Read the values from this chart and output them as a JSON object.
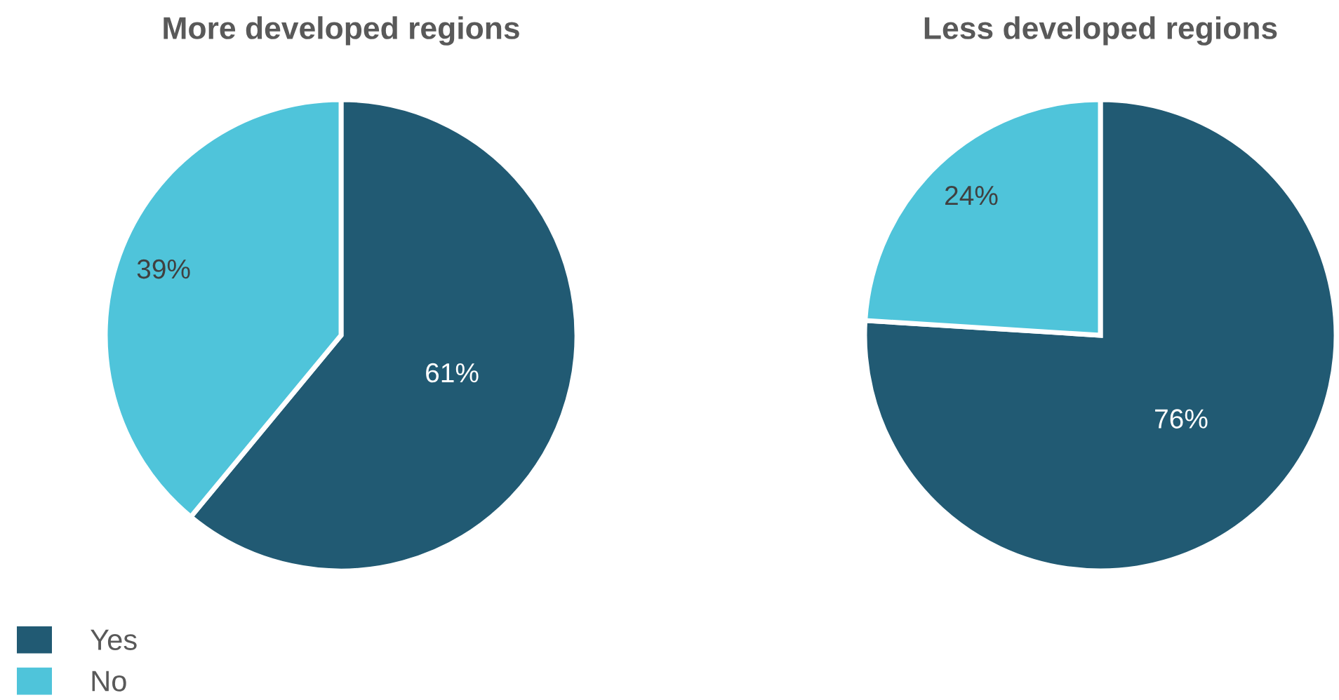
{
  "chart_data": [
    {
      "type": "pie",
      "title": "More developed regions",
      "categories": [
        "Yes",
        "No"
      ],
      "values": [
        61,
        39
      ],
      "colors": [
        "#215a73",
        "#4fc4da"
      ],
      "value_labels": [
        "61%",
        "39%"
      ],
      "legend": "bottom left"
    },
    {
      "type": "pie",
      "title": "Less developed regions",
      "categories": [
        null,
        null
      ],
      "values": [
        76,
        24
      ],
      "colors": [
        "#215a73",
        "#4fc4da"
      ],
      "value_labels": [
        "76%",
        "24%"
      ]
    }
  ]
}
